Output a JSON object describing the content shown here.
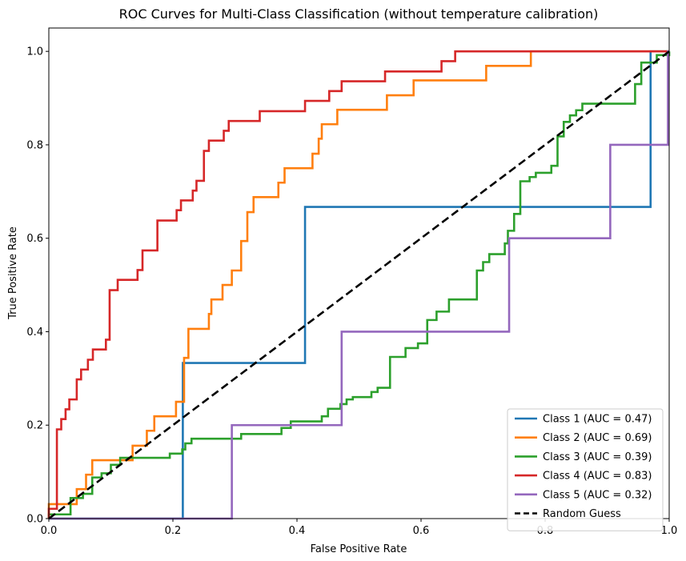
{
  "chart_data": {
    "type": "line",
    "title": "ROC Curves for Multi-Class Classification (without temperature calibration)",
    "xlabel": "False Positive Rate",
    "ylabel": "True Positive Rate",
    "xlim": [
      0.0,
      1.0
    ],
    "ylim": [
      0.0,
      1.05
    ],
    "x_ticks": [
      "0.0",
      "0.2",
      "0.4",
      "0.6",
      "0.8",
      "1.0"
    ],
    "y_ticks": [
      "0.0",
      "0.2",
      "0.4",
      "0.6",
      "0.8",
      "1.0"
    ],
    "grid": false,
    "legend_position": "bottom-right",
    "series": [
      {
        "name": "Class 1 (AUC = 0.47)",
        "color": "#1f77b4",
        "style": "solid",
        "points": [
          [
            0.0,
            0.0
          ],
          [
            0.216,
            0.0
          ],
          [
            0.216,
            0.333
          ],
          [
            0.413,
            0.333
          ],
          [
            0.413,
            0.667
          ],
          [
            0.97,
            0.667
          ],
          [
            0.97,
            1.0
          ],
          [
            1.0,
            1.0
          ]
        ]
      },
      {
        "name": "Class 2 (AUC = 0.69)",
        "color": "#ff7f0e",
        "style": "solid",
        "points": [
          [
            0.0,
            0.0
          ],
          [
            0.0,
            0.031
          ],
          [
            0.045,
            0.031
          ],
          [
            0.045,
            0.063
          ],
          [
            0.06,
            0.063
          ],
          [
            0.06,
            0.094
          ],
          [
            0.07,
            0.094
          ],
          [
            0.07,
            0.125
          ],
          [
            0.115,
            0.125
          ],
          [
            0.115,
            0.125
          ],
          [
            0.135,
            0.125
          ],
          [
            0.135,
            0.156
          ],
          [
            0.158,
            0.156
          ],
          [
            0.158,
            0.188
          ],
          [
            0.17,
            0.188
          ],
          [
            0.17,
            0.219
          ],
          [
            0.205,
            0.219
          ],
          [
            0.205,
            0.25
          ],
          [
            0.218,
            0.25
          ],
          [
            0.218,
            0.344
          ],
          [
            0.225,
            0.344
          ],
          [
            0.225,
            0.406
          ],
          [
            0.258,
            0.406
          ],
          [
            0.258,
            0.438
          ],
          [
            0.262,
            0.438
          ],
          [
            0.262,
            0.469
          ],
          [
            0.28,
            0.469
          ],
          [
            0.28,
            0.5
          ],
          [
            0.295,
            0.5
          ],
          [
            0.295,
            0.531
          ],
          [
            0.31,
            0.531
          ],
          [
            0.31,
            0.594
          ],
          [
            0.32,
            0.594
          ],
          [
            0.32,
            0.656
          ],
          [
            0.33,
            0.656
          ],
          [
            0.33,
            0.688
          ],
          [
            0.37,
            0.688
          ],
          [
            0.37,
            0.719
          ],
          [
            0.38,
            0.719
          ],
          [
            0.38,
            0.75
          ],
          [
            0.425,
            0.75
          ],
          [
            0.425,
            0.781
          ],
          [
            0.435,
            0.781
          ],
          [
            0.435,
            0.813
          ],
          [
            0.44,
            0.813
          ],
          [
            0.44,
            0.844
          ],
          [
            0.465,
            0.844
          ],
          [
            0.465,
            0.875
          ],
          [
            0.545,
            0.875
          ],
          [
            0.545,
            0.906
          ],
          [
            0.588,
            0.906
          ],
          [
            0.588,
            0.938
          ],
          [
            0.705,
            0.938
          ],
          [
            0.705,
            0.969
          ],
          [
            0.777,
            0.969
          ],
          [
            0.777,
            1.0
          ],
          [
            1.0,
            1.0
          ]
        ]
      },
      {
        "name": "Class 3 (AUC = 0.39)",
        "color": "#2ca02c",
        "style": "solid",
        "points": [
          [
            0.0,
            0.0
          ],
          [
            0.0,
            0.009
          ],
          [
            0.035,
            0.009
          ],
          [
            0.035,
            0.044
          ],
          [
            0.055,
            0.044
          ],
          [
            0.055,
            0.053
          ],
          [
            0.07,
            0.053
          ],
          [
            0.07,
            0.088
          ],
          [
            0.085,
            0.088
          ],
          [
            0.085,
            0.097
          ],
          [
            0.1,
            0.097
          ],
          [
            0.1,
            0.115
          ],
          [
            0.115,
            0.115
          ],
          [
            0.115,
            0.13
          ],
          [
            0.16,
            0.13
          ],
          [
            0.16,
            0.13
          ],
          [
            0.195,
            0.13
          ],
          [
            0.195,
            0.139
          ],
          [
            0.215,
            0.139
          ],
          [
            0.215,
            0.148
          ],
          [
            0.22,
            0.148
          ],
          [
            0.22,
            0.161
          ],
          [
            0.23,
            0.161
          ],
          [
            0.23,
            0.171
          ],
          [
            0.31,
            0.171
          ],
          [
            0.31,
            0.181
          ],
          [
            0.375,
            0.181
          ],
          [
            0.375,
            0.194
          ],
          [
            0.39,
            0.194
          ],
          [
            0.39,
            0.208
          ],
          [
            0.44,
            0.208
          ],
          [
            0.44,
            0.219
          ],
          [
            0.45,
            0.219
          ],
          [
            0.45,
            0.235
          ],
          [
            0.47,
            0.235
          ],
          [
            0.47,
            0.245
          ],
          [
            0.48,
            0.245
          ],
          [
            0.48,
            0.255
          ],
          [
            0.49,
            0.255
          ],
          [
            0.49,
            0.26
          ],
          [
            0.52,
            0.26
          ],
          [
            0.52,
            0.271
          ],
          [
            0.53,
            0.271
          ],
          [
            0.53,
            0.28
          ],
          [
            0.55,
            0.28
          ],
          [
            0.55,
            0.346
          ],
          [
            0.575,
            0.346
          ],
          [
            0.575,
            0.365
          ],
          [
            0.595,
            0.365
          ],
          [
            0.595,
            0.375
          ],
          [
            0.61,
            0.375
          ],
          [
            0.61,
            0.425
          ],
          [
            0.625,
            0.425
          ],
          [
            0.625,
            0.443
          ],
          [
            0.645,
            0.443
          ],
          [
            0.645,
            0.469
          ],
          [
            0.69,
            0.469
          ],
          [
            0.69,
            0.531
          ],
          [
            0.7,
            0.531
          ],
          [
            0.7,
            0.549
          ],
          [
            0.71,
            0.549
          ],
          [
            0.71,
            0.566
          ],
          [
            0.735,
            0.566
          ],
          [
            0.735,
            0.589
          ],
          [
            0.74,
            0.589
          ],
          [
            0.74,
            0.616
          ],
          [
            0.75,
            0.616
          ],
          [
            0.75,
            0.652
          ],
          [
            0.76,
            0.652
          ],
          [
            0.76,
            0.722
          ],
          [
            0.775,
            0.722
          ],
          [
            0.775,
            0.731
          ],
          [
            0.785,
            0.731
          ],
          [
            0.785,
            0.74
          ],
          [
            0.81,
            0.74
          ],
          [
            0.81,
            0.755
          ],
          [
            0.82,
            0.755
          ],
          [
            0.82,
            0.818
          ],
          [
            0.83,
            0.818
          ],
          [
            0.83,
            0.849
          ],
          [
            0.84,
            0.849
          ],
          [
            0.84,
            0.863
          ],
          [
            0.85,
            0.863
          ],
          [
            0.85,
            0.874
          ],
          [
            0.86,
            0.874
          ],
          [
            0.86,
            0.888
          ],
          [
            0.945,
            0.888
          ],
          [
            0.945,
            0.93
          ],
          [
            0.955,
            0.93
          ],
          [
            0.955,
            0.976
          ],
          [
            0.98,
            0.976
          ],
          [
            0.98,
            0.992
          ],
          [
            1.0,
            0.992
          ],
          [
            1.0,
            1.0
          ]
        ]
      },
      {
        "name": "Class 4 (AUC = 0.83)",
        "color": "#d62728",
        "style": "solid",
        "points": [
          [
            0.0,
            0.0
          ],
          [
            0.0,
            0.021
          ],
          [
            0.013,
            0.021
          ],
          [
            0.013,
            0.191
          ],
          [
            0.02,
            0.191
          ],
          [
            0.02,
            0.213
          ],
          [
            0.027,
            0.213
          ],
          [
            0.027,
            0.234
          ],
          [
            0.033,
            0.234
          ],
          [
            0.033,
            0.255
          ],
          [
            0.045,
            0.255
          ],
          [
            0.045,
            0.298
          ],
          [
            0.052,
            0.298
          ],
          [
            0.052,
            0.319
          ],
          [
            0.063,
            0.319
          ],
          [
            0.063,
            0.34
          ],
          [
            0.071,
            0.34
          ],
          [
            0.071,
            0.362
          ],
          [
            0.092,
            0.362
          ],
          [
            0.092,
            0.383
          ],
          [
            0.098,
            0.383
          ],
          [
            0.098,
            0.489
          ],
          [
            0.111,
            0.489
          ],
          [
            0.111,
            0.511
          ],
          [
            0.143,
            0.511
          ],
          [
            0.143,
            0.532
          ],
          [
            0.151,
            0.532
          ],
          [
            0.151,
            0.574
          ],
          [
            0.175,
            0.574
          ],
          [
            0.175,
            0.638
          ],
          [
            0.206,
            0.638
          ],
          [
            0.206,
            0.66
          ],
          [
            0.213,
            0.66
          ],
          [
            0.213,
            0.681
          ],
          [
            0.232,
            0.681
          ],
          [
            0.232,
            0.702
          ],
          [
            0.238,
            0.702
          ],
          [
            0.238,
            0.723
          ],
          [
            0.25,
            0.723
          ],
          [
            0.25,
            0.787
          ],
          [
            0.258,
            0.787
          ],
          [
            0.258,
            0.809
          ],
          [
            0.282,
            0.809
          ],
          [
            0.282,
            0.83
          ],
          [
            0.29,
            0.83
          ],
          [
            0.29,
            0.851
          ],
          [
            0.34,
            0.851
          ],
          [
            0.34,
            0.872
          ],
          [
            0.413,
            0.872
          ],
          [
            0.413,
            0.894
          ],
          [
            0.452,
            0.894
          ],
          [
            0.452,
            0.915
          ],
          [
            0.472,
            0.915
          ],
          [
            0.472,
            0.936
          ],
          [
            0.542,
            0.936
          ],
          [
            0.542,
            0.957
          ],
          [
            0.633,
            0.957
          ],
          [
            0.633,
            0.979
          ],
          [
            0.655,
            0.979
          ],
          [
            0.655,
            1.0
          ],
          [
            1.0,
            1.0
          ]
        ]
      },
      {
        "name": "Class 5 (AUC = 0.32)",
        "color": "#9467bd",
        "style": "solid",
        "points": [
          [
            0.0,
            0.0
          ],
          [
            0.295,
            0.0
          ],
          [
            0.295,
            0.2
          ],
          [
            0.472,
            0.2
          ],
          [
            0.472,
            0.4
          ],
          [
            0.742,
            0.4
          ],
          [
            0.742,
            0.6
          ],
          [
            0.905,
            0.6
          ],
          [
            0.905,
            0.8
          ],
          [
            0.998,
            0.8
          ],
          [
            0.998,
            1.0
          ],
          [
            1.0,
            1.0
          ]
        ]
      },
      {
        "name": "Random Guess",
        "color": "#000000",
        "style": "dashed",
        "points": [
          [
            0.0,
            0.0
          ],
          [
            1.0,
            1.0
          ]
        ]
      }
    ]
  }
}
